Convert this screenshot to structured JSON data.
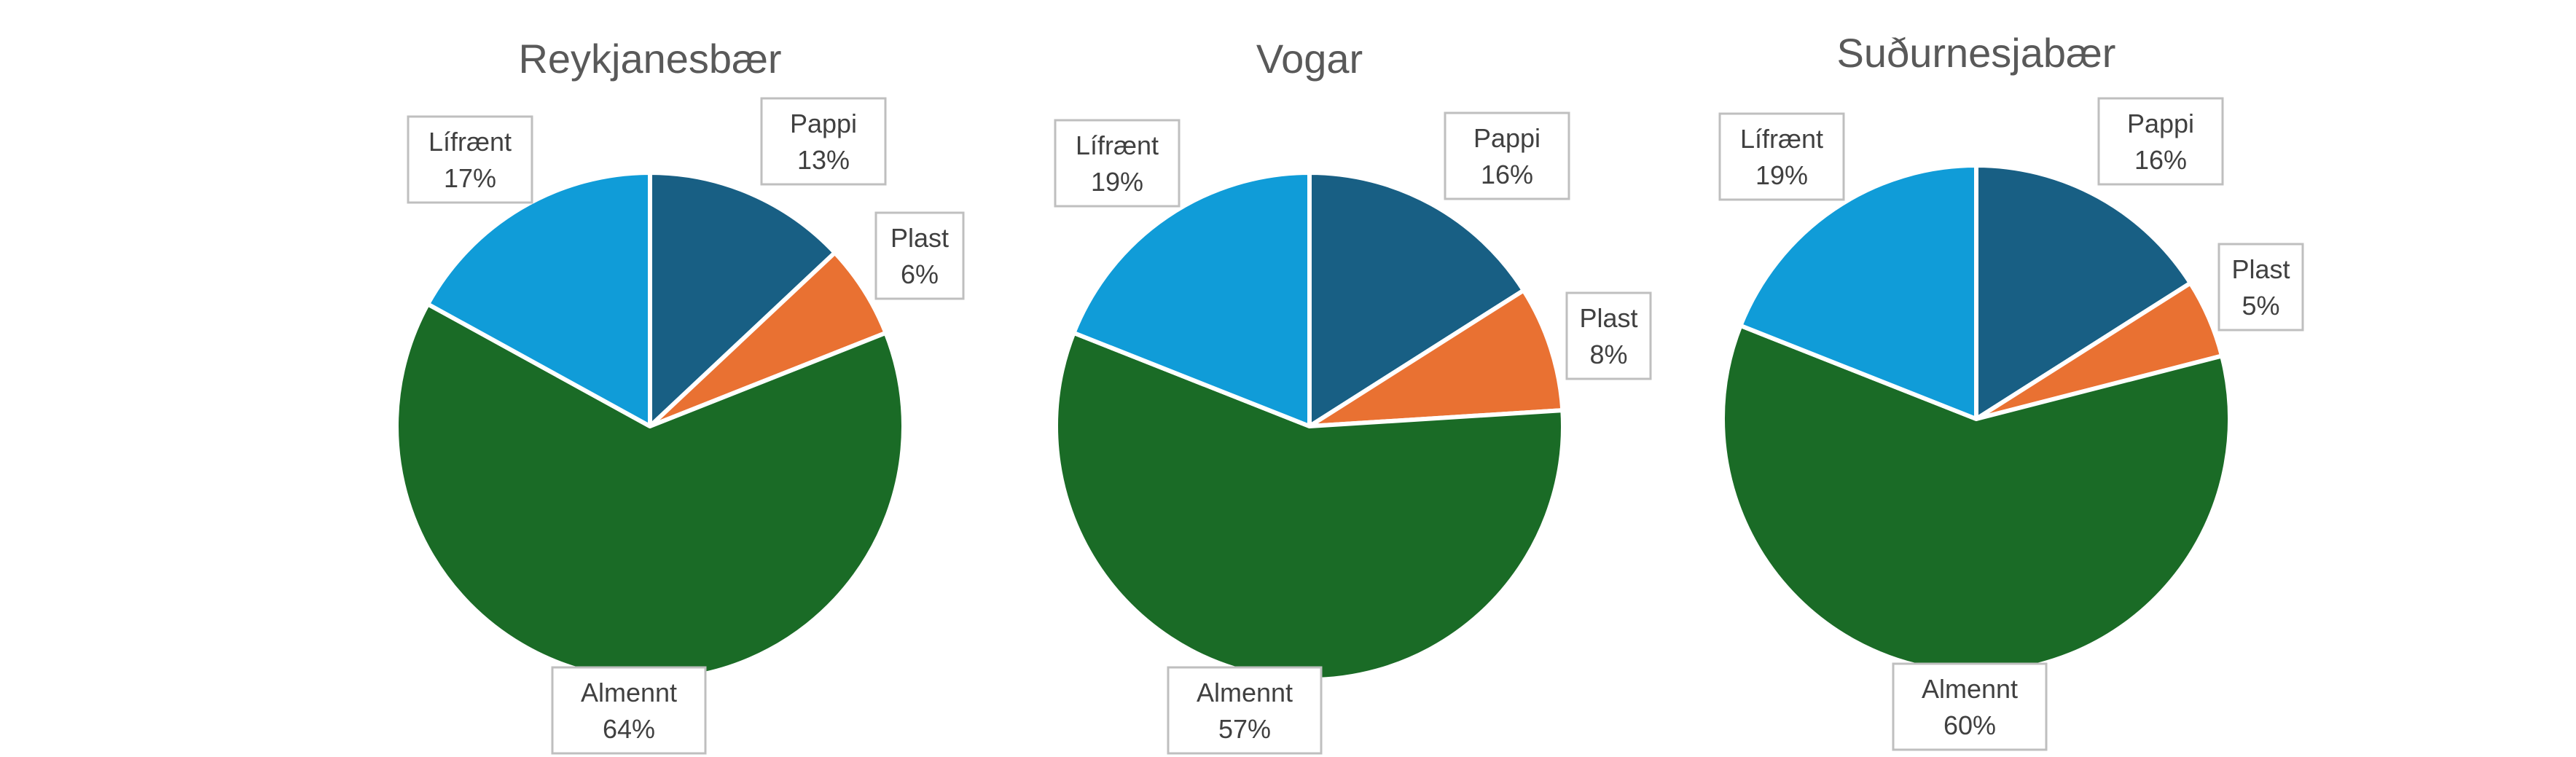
{
  "chart_data": [
    {
      "type": "pie",
      "title": "Reykjanesbær",
      "slices": [
        {
          "label": "Pappi",
          "value": 13,
          "display": "13%",
          "color": "#185f84"
        },
        {
          "label": "Plast",
          "value": 6,
          "display": "6%",
          "color": "#e97132"
        },
        {
          "label": "Almennt",
          "value": 64,
          "display": "64%",
          "color": "#1a6b26"
        },
        {
          "label": "Lífrænt",
          "value": 17,
          "display": "17%",
          "color": "#109cd8"
        }
      ]
    },
    {
      "type": "pie",
      "title": "Vogar",
      "slices": [
        {
          "label": "Pappi",
          "value": 16,
          "display": "16%",
          "color": "#185f84"
        },
        {
          "label": "Plast",
          "value": 8,
          "display": "8%",
          "color": "#e97132"
        },
        {
          "label": "Almennt",
          "value": 57,
          "display": "57%",
          "color": "#1a6b26"
        },
        {
          "label": "Lífrænt",
          "value": 19,
          "display": "19%",
          "color": "#109cd8"
        }
      ]
    },
    {
      "type": "pie",
      "title": "Suðurnesjabær",
      "slices": [
        {
          "label": "Pappi",
          "value": 16,
          "display": "16%",
          "color": "#185f84"
        },
        {
          "label": "Plast",
          "value": 5,
          "display": "5%",
          "color": "#e97132"
        },
        {
          "label": "Almennt",
          "value": 60,
          "display": "60%",
          "color": "#1a6b26"
        },
        {
          "label": "Lífrænt",
          "value": 19,
          "display": "19%",
          "color": "#109cd8"
        }
      ]
    }
  ]
}
